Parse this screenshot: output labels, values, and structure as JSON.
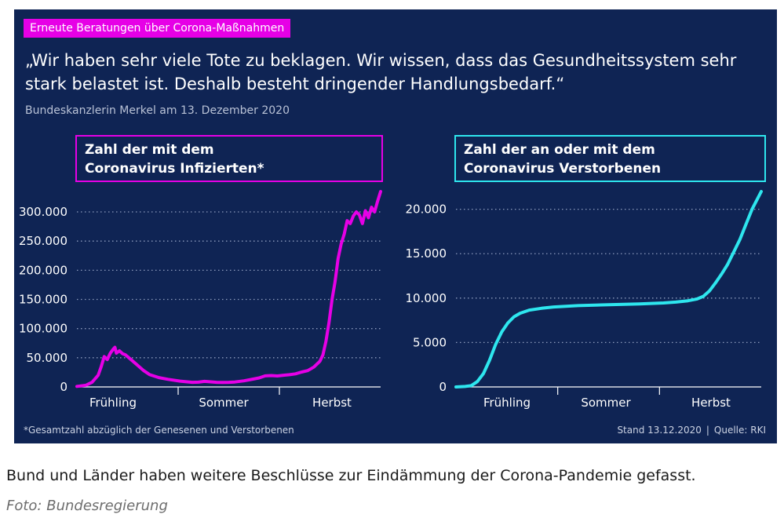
{
  "header": {
    "kicker": "Erneute Beratungen über Corona-Maßnahmen",
    "quote": "„Wir haben sehr viele Tote zu beklagen. Wir wissen, dass das Gesundheitssystem sehr stark belastet ist. Deshalb besteht dringender Handlungsbedarf.“",
    "attribution": "Bundeskanzlerin Merkel am 13. Dezember 2020"
  },
  "colors": {
    "background": "#0f2454",
    "accent_magenta": "#e600e6",
    "accent_cyan": "#2ee6ee"
  },
  "chart_data": [
    {
      "type": "line",
      "title_lines": [
        "Zahl der mit dem",
        "Coronavirus Infizierten*"
      ],
      "xlabel": "",
      "ylabel": "",
      "x_ticks": [
        "Frühling",
        "Sommer",
        "Herbst"
      ],
      "yticks": [
        0,
        50000,
        100000,
        150000,
        200000,
        250000,
        300000
      ],
      "ytick_labels": [
        "0",
        "50.000",
        "100.000",
        "150.000",
        "200.000",
        "250.000",
        "300.000"
      ],
      "ylim": [
        0,
        335000
      ],
      "xlim": [
        0,
        1
      ],
      "grid": "horizontal dotted",
      "series": [
        {
          "color": "#e600e6",
          "points": [
            [
              0.0,
              1000
            ],
            [
              0.03,
              3000
            ],
            [
              0.05,
              8000
            ],
            [
              0.07,
              20000
            ],
            [
              0.08,
              35000
            ],
            [
              0.09,
              52000
            ],
            [
              0.1,
              47000
            ],
            [
              0.11,
              58000
            ],
            [
              0.12,
              65000
            ],
            [
              0.125,
              68000
            ],
            [
              0.13,
              58000
            ],
            [
              0.14,
              62000
            ],
            [
              0.15,
              57000
            ],
            [
              0.16,
              55000
            ],
            [
              0.18,
              46000
            ],
            [
              0.2,
              37000
            ],
            [
              0.22,
              28000
            ],
            [
              0.24,
              21000
            ],
            [
              0.27,
              16000
            ],
            [
              0.3,
              13000
            ],
            [
              0.34,
              10000
            ],
            [
              0.38,
              8000
            ],
            [
              0.4,
              8200
            ],
            [
              0.42,
              9500
            ],
            [
              0.44,
              8800
            ],
            [
              0.46,
              8000
            ],
            [
              0.48,
              7800
            ],
            [
              0.5,
              8000
            ],
            [
              0.52,
              8500
            ],
            [
              0.55,
              10500
            ],
            [
              0.58,
              13500
            ],
            [
              0.6,
              15500
            ],
            [
              0.62,
              19000
            ],
            [
              0.64,
              19500
            ],
            [
              0.66,
              18800
            ],
            [
              0.68,
              20000
            ],
            [
              0.7,
              21000
            ],
            [
              0.72,
              22500
            ],
            [
              0.74,
              25500
            ],
            [
              0.76,
              28000
            ],
            [
              0.78,
              34000
            ],
            [
              0.8,
              44000
            ],
            [
              0.81,
              55000
            ],
            [
              0.82,
              78000
            ],
            [
              0.83,
              110000
            ],
            [
              0.84,
              150000
            ],
            [
              0.85,
              180000
            ],
            [
              0.86,
              220000
            ],
            [
              0.87,
              245000
            ],
            [
              0.88,
              262000
            ],
            [
              0.89,
              285000
            ],
            [
              0.9,
              280000
            ],
            [
              0.91,
              293000
            ],
            [
              0.92,
              300000
            ],
            [
              0.93,
              295000
            ],
            [
              0.94,
              280000
            ],
            [
              0.95,
              302000
            ],
            [
              0.96,
              290000
            ],
            [
              0.97,
              308000
            ],
            [
              0.98,
              300000
            ],
            [
              0.99,
              318000
            ],
            [
              1.0,
              335000
            ]
          ]
        }
      ]
    },
    {
      "type": "line",
      "title_lines": [
        "Zahl der an oder mit dem",
        "Coronavirus Verstorbenen"
      ],
      "xlabel": "",
      "ylabel": "",
      "x_ticks": [
        "Frühling",
        "Sommer",
        "Herbst"
      ],
      "yticks": [
        0,
        5000,
        10000,
        15000,
        20000
      ],
      "ytick_labels": [
        "0",
        "5.000",
        "10.000",
        "15.000",
        "20.000"
      ],
      "ylim": [
        0,
        22000
      ],
      "xlim": [
        0,
        1
      ],
      "grid": "horizontal dotted",
      "series": [
        {
          "color": "#2ee6ee",
          "points": [
            [
              0.0,
              0
            ],
            [
              0.03,
              50
            ],
            [
              0.05,
              150
            ],
            [
              0.07,
              600
            ],
            [
              0.09,
              1500
            ],
            [
              0.11,
              3000
            ],
            [
              0.13,
              4800
            ],
            [
              0.15,
              6200
            ],
            [
              0.17,
              7200
            ],
            [
              0.19,
              7900
            ],
            [
              0.21,
              8300
            ],
            [
              0.24,
              8650
            ],
            [
              0.28,
              8850
            ],
            [
              0.32,
              9000
            ],
            [
              0.4,
              9150
            ],
            [
              0.5,
              9250
            ],
            [
              0.6,
              9350
            ],
            [
              0.68,
              9450
            ],
            [
              0.72,
              9550
            ],
            [
              0.76,
              9700
            ],
            [
              0.79,
              9900
            ],
            [
              0.81,
              10200
            ],
            [
              0.83,
              10800
            ],
            [
              0.85,
              11700
            ],
            [
              0.87,
              12700
            ],
            [
              0.89,
              13800
            ],
            [
              0.91,
              15200
            ],
            [
              0.93,
              16600
            ],
            [
              0.95,
              18300
            ],
            [
              0.97,
              20000
            ],
            [
              1.0,
              22000
            ]
          ]
        }
      ]
    }
  ],
  "footer": {
    "footnote": "*Gesamtzahl abzüglich der Genesenen und Verstorbenen",
    "stand": "Stand 13.12.2020",
    "separator": "|",
    "source": "Quelle: RKI"
  },
  "caption": "Bund und Länder haben weitere Beschlüsse zur Eindämmung der Corona-Pandemie gefasst.",
  "credit": "Foto: Bundesregierung"
}
